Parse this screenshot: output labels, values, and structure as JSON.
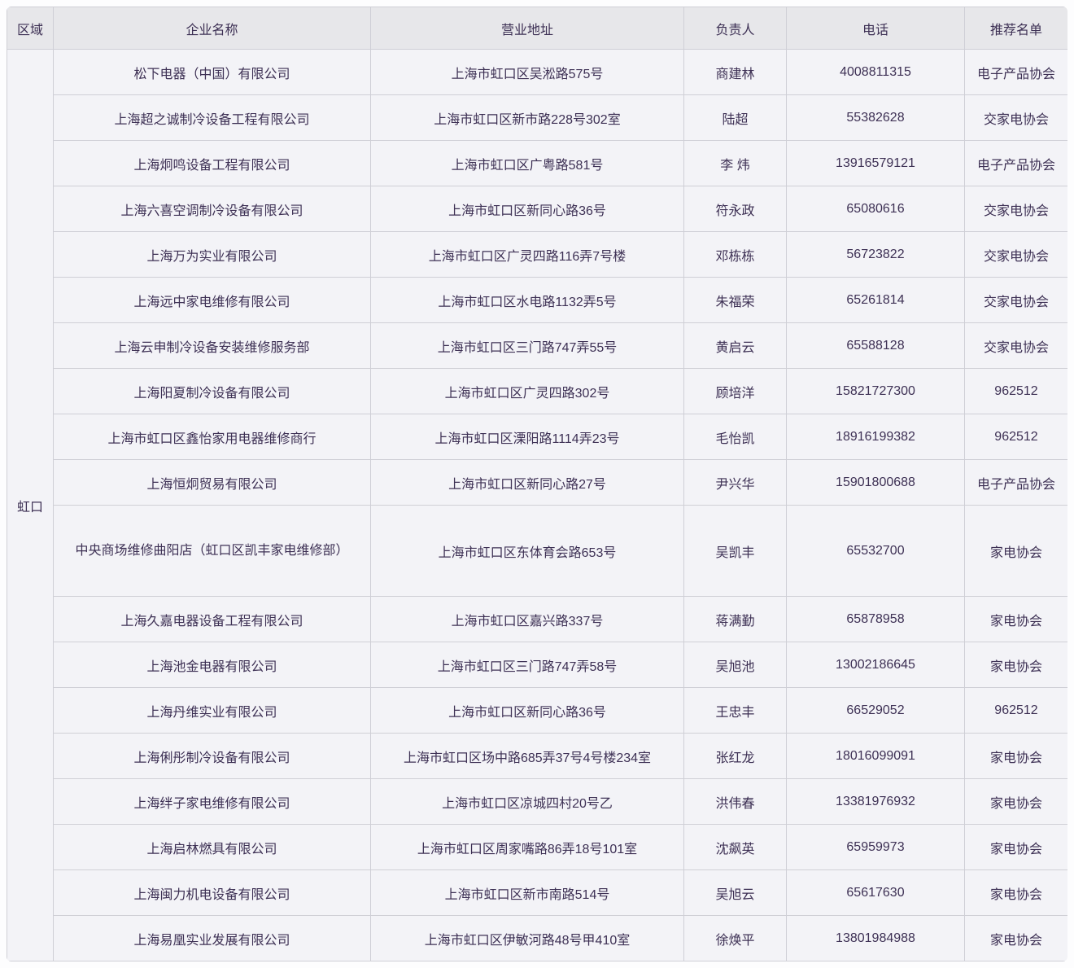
{
  "table": {
    "region": "虹口",
    "headers": {
      "region": "区域",
      "name": "企业名称",
      "address": "营业地址",
      "person": "负责人",
      "phone": "电话",
      "list": "推荐名单"
    },
    "colors": {
      "header_bg": "#e7e7ea",
      "cell_bg": "#f3f3f7",
      "border": "#cfcfd6",
      "text": "#3d3054"
    },
    "rows": [
      {
        "name": "松下电器（中国）有限公司",
        "address": "上海市虹口区吴淞路575号",
        "person": "商建林",
        "phone": "4008811315",
        "list": "电子产品协会"
      },
      {
        "name": "上海超之诚制冷设备工程有限公司",
        "address": "上海市虹口区新市路228号302室",
        "person": "陆超",
        "phone": "55382628",
        "list": "交家电协会"
      },
      {
        "name": "上海炯鸣设备工程有限公司",
        "address": "上海市虹口区广粤路581号",
        "person": "李 炜",
        "phone": "13916579121",
        "list": "电子产品协会"
      },
      {
        "name": "上海六喜空调制冷设备有限公司",
        "address": "上海市虹口区新同心路36号",
        "person": "符永政",
        "phone": "65080616",
        "list": "交家电协会"
      },
      {
        "name": "上海万为实业有限公司",
        "address": "上海市虹口区广灵四路116弄7号楼",
        "person": "邓栋栋",
        "phone": "56723822",
        "list": "交家电协会"
      },
      {
        "name": "上海远中家电维修有限公司",
        "address": "上海市虹口区水电路1132弄5号",
        "person": "朱福荣",
        "phone": "65261814",
        "list": "交家电协会"
      },
      {
        "name": "上海云申制冷设备安装维修服务部",
        "address": "上海市虹口区三门路747弄55号",
        "person": "黄启云",
        "phone": "65588128",
        "list": "交家电协会"
      },
      {
        "name": "上海阳夏制冷设备有限公司",
        "address": "上海市虹口区广灵四路302号",
        "person": "顾培洋",
        "phone": "15821727300",
        "list": "962512"
      },
      {
        "name": "上海市虹口区鑫怡家用电器维修商行",
        "address": "上海市虹口区溧阳路1114弄23号",
        "person": "毛怡凯",
        "phone": "18916199382",
        "list": "962512"
      },
      {
        "name": "上海恒炯贸易有限公司",
        "address": "上海市虹口区新同心路27号",
        "person": "尹兴华",
        "phone": "15901800688",
        "list": "电子产品协会"
      },
      {
        "name": "中央商场维修曲阳店（虹口区凯丰家电维修部）",
        "address": "上海市虹口区东体育会路653号",
        "person": "吴凯丰",
        "phone": "65532700",
        "list": "家电协会",
        "tall": true
      },
      {
        "name": "上海久嘉电器设备工程有限公司",
        "address": "上海市虹口区嘉兴路337号",
        "person": "蒋满勤",
        "phone": "65878958",
        "list": "家电协会"
      },
      {
        "name": "上海池金电器有限公司",
        "address": "上海市虹口区三门路747弄58号",
        "person": "吴旭池",
        "phone": "13002186645",
        "list": "家电协会"
      },
      {
        "name": "上海丹维实业有限公司",
        "address": "上海市虹口区新同心路36号",
        "person": "王忠丰",
        "phone": "66529052",
        "list": "962512"
      },
      {
        "name": "上海俐彤制冷设备有限公司",
        "address": "上海市虹口区场中路685弄37号4号楼234室",
        "person": "张红龙",
        "phone": "18016099091",
        "list": "家电协会"
      },
      {
        "name": "上海绊子家电维修有限公司",
        "address": "上海市虹口区凉城四村20号乙",
        "person": "洪伟春",
        "phone": "13381976932",
        "list": "家电协会"
      },
      {
        "name": "上海启林燃具有限公司",
        "address": "上海市虹口区周家嘴路86弄18号101室",
        "person": "沈飙英",
        "phone": "65959973",
        "list": "家电协会"
      },
      {
        "name": "上海闽力机电设备有限公司",
        "address": "上海市虹口区新市南路514号",
        "person": "吴旭云",
        "phone": "65617630",
        "list": "家电协会"
      },
      {
        "name": "上海易凰实业发展有限公司",
        "address": "上海市虹口区伊敏河路48号甲410室",
        "person": "徐焕平",
        "phone": "13801984988",
        "list": "家电协会"
      }
    ]
  }
}
